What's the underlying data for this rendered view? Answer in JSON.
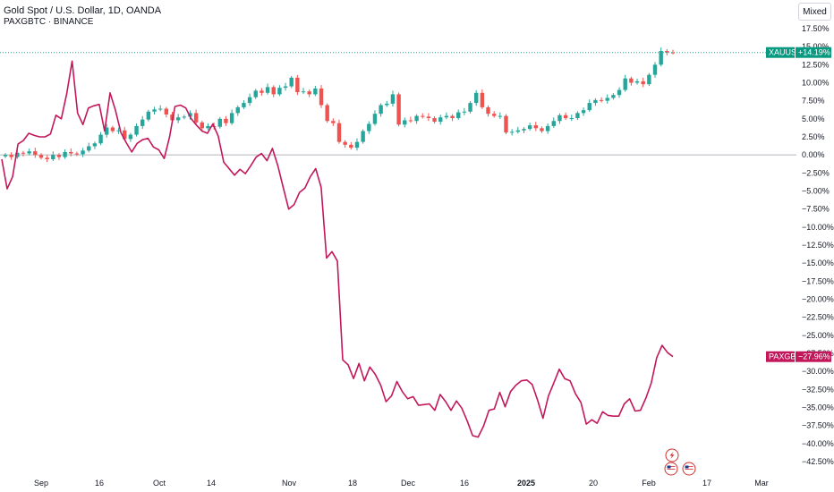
{
  "header": {
    "title": "Gold Spot / U.S. Dollar, 1D, OANDA",
    "subtitle": "PAXGBTC · BINANCE",
    "scale_mode": "Mixed"
  },
  "colors": {
    "up": "#26a69a",
    "down": "#ef5350",
    "paxg_line": "#c2185b",
    "xauusd_badge": "#089981",
    "paxg_badge": "#c2185b",
    "zero_line": "#b2b5be"
  },
  "icons": [
    "lightning-icon",
    "us-flag-icon",
    "us-flag-icon"
  ],
  "chart_data": {
    "type": "line",
    "x_tick_labels": [
      "Sep",
      "16",
      "Oct",
      "14",
      "Nov",
      "18",
      "Dec",
      "16",
      "2025",
      "20",
      "Feb",
      "17",
      "Mar"
    ],
    "y_tick_labels": [
      "17.50%",
      "15.00%",
      "12.50%",
      "10.00%",
      "7.50%",
      "5.00%",
      "2.50%",
      "0.00%",
      "−2.50%",
      "−5.00%",
      "−7.50%",
      "−10.00%",
      "−12.50%",
      "−15.00%",
      "−17.50%",
      "−20.00%",
      "−22.50%",
      "−25.00%",
      "−27.50%",
      "−30.00%",
      "−32.50%",
      "−35.00%",
      "−37.50%",
      "−40.00%",
      "−42.50%"
    ],
    "ylim": [
      -42.5,
      17.5
    ],
    "grid": false,
    "series": [
      {
        "name": "XAUUSD",
        "style": "candlestick",
        "last_label": "+14.19%",
        "close": [
          0.0,
          -0.3,
          0.3,
          0.2,
          0.5,
          0.0,
          -0.4,
          -0.6,
          0.0,
          -0.3,
          0.4,
          0.2,
          0.1,
          0.6,
          1.2,
          1.6,
          2.8,
          3.8,
          3.3,
          3.4,
          2.2,
          2.8,
          4.0,
          4.9,
          6.0,
          6.3,
          6.4,
          5.6,
          4.8,
          5.2,
          5.3,
          5.8,
          4.5,
          3.7,
          4.0,
          3.9,
          5.0,
          4.4,
          5.8,
          6.6,
          7.2,
          8.0,
          8.9,
          8.6,
          9.4,
          8.4,
          9.3,
          9.5,
          10.7,
          8.7,
          8.8,
          8.4,
          9.2,
          6.9,
          4.7,
          4.4,
          1.8,
          1.4,
          1.0,
          1.8,
          3.3,
          4.3,
          5.7,
          6.9,
          7.1,
          8.4,
          4.2,
          4.8,
          4.7,
          5.4,
          5.3,
          5.1,
          4.6,
          5.2,
          5.4,
          5.1,
          5.9,
          6.0,
          7.2,
          8.6,
          6.6,
          5.7,
          5.4,
          5.4,
          3.1,
          3.2,
          3.4,
          3.6,
          4.1,
          3.7,
          3.3,
          4.0,
          4.7,
          5.5,
          5.1,
          5.1,
          5.8,
          6.2,
          7.2,
          7.6,
          7.5,
          7.9,
          8.3,
          9.0,
          10.6,
          10.0,
          10.2,
          9.8,
          11.1,
          12.5,
          14.4,
          14.2,
          14.19
        ]
      },
      {
        "name": "PAXGBTC",
        "style": "line",
        "last_label": "−27.96%",
        "values": [
          -0.6,
          -4.7,
          -3.0,
          1.5,
          2.0,
          3.0,
          2.7,
          2.5,
          2.5,
          2.9,
          5.5,
          5.0,
          8.5,
          13.0,
          5.8,
          4.2,
          6.5,
          6.8,
          7.0,
          3.3,
          8.6,
          6.2,
          3.1,
          1.7,
          0.4,
          1.6,
          2.1,
          2.3,
          1.1,
          0.7,
          -0.5,
          2.5,
          6.7,
          6.9,
          6.5,
          5.0,
          4.1,
          3.3,
          3.0,
          4.3,
          2.6,
          -1.0,
          -1.9,
          -2.8,
          -2.0,
          -2.6,
          -1.5,
          -0.3,
          0.2,
          -0.8,
          0.9,
          -1.5,
          -4.5,
          -7.5,
          -6.9,
          -5.2,
          -4.6,
          -3.0,
          -1.9,
          -4.5,
          -14.3,
          -13.4,
          -14.7,
          -28.4,
          -29.1,
          -31.0,
          -28.9,
          -31.3,
          -29.4,
          -30.4,
          -31.9,
          -34.2,
          -33.4,
          -31.4,
          -32.8,
          -33.8,
          -33.5,
          -34.7,
          -34.6,
          -34.5,
          -35.4,
          -33.2,
          -34.2,
          -35.4,
          -34.1,
          -35.1,
          -36.9,
          -38.9,
          -39.1,
          -37.6,
          -35.4,
          -35.2,
          -32.9,
          -34.9,
          -32.8,
          -31.9,
          -31.3,
          -31.2,
          -31.8,
          -34.0,
          -36.5,
          -33.4,
          -31.6,
          -29.7,
          -31.0,
          -31.3,
          -33.1,
          -34.3,
          -37.3,
          -36.7,
          -37.2,
          -35.6,
          -36.1,
          -36.2,
          -36.2,
          -34.5,
          -33.8,
          -35.5,
          -35.4,
          -33.7,
          -31.6,
          -28.1,
          -26.4,
          -27.4,
          -27.96
        ]
      }
    ]
  }
}
